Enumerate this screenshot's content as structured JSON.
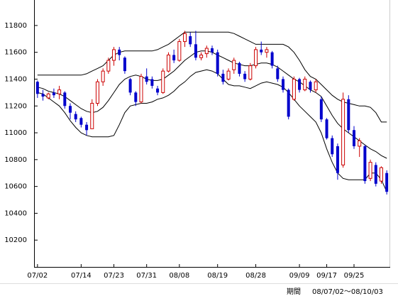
{
  "chart_data": {
    "type": "candlestick",
    "categories": [
      "07/02",
      null,
      null,
      null,
      null,
      null,
      null,
      null,
      "07/14",
      null,
      null,
      null,
      null,
      null,
      "07/23",
      null,
      null,
      null,
      null,
      null,
      "07/31",
      null,
      null,
      null,
      null,
      null,
      "08/08",
      null,
      null,
      null,
      null,
      null,
      null,
      "08/19",
      null,
      null,
      null,
      null,
      null,
      null,
      "08/28",
      null,
      null,
      null,
      null,
      null,
      null,
      null,
      "09/09",
      null,
      null,
      null,
      null,
      "09/17",
      null,
      null,
      null,
      null,
      "09/25",
      null,
      null,
      null,
      null,
      null,
      null
    ],
    "open": [
      11380,
      11290,
      11260,
      11300,
      11290,
      11300,
      11200,
      11140,
      11110,
      11060,
      11030,
      11220,
      11380,
      11460,
      11540,
      11620,
      11560,
      11400,
      11300,
      11230,
      11420,
      11400,
      11330,
      11300,
      11460,
      11580,
      11540,
      11680,
      11720,
      11660,
      11560,
      11590,
      11630,
      11600,
      11440,
      11400,
      11470,
      11520,
      11440,
      11400,
      11500,
      11620,
      11600,
      11600,
      11480,
      11400,
      11320,
      11250,
      11400,
      11320,
      11380,
      11320,
      11250,
      11100,
      10960,
      10900,
      10760,
      11250,
      11020,
      10900,
      10900,
      10660,
      10760,
      10640,
      10700
    ],
    "high": [
      11390,
      11320,
      11300,
      11330,
      11350,
      11310,
      11220,
      11160,
      11120,
      11080,
      11250,
      11400,
      11480,
      11560,
      11640,
      11640,
      11570,
      11410,
      11310,
      11440,
      11480,
      11420,
      11350,
      11480,
      11600,
      11620,
      11700,
      11760,
      11750,
      11760,
      11600,
      11650,
      11650,
      11620,
      11470,
      11480,
      11560,
      11530,
      11460,
      11520,
      11640,
      11680,
      11640,
      11610,
      11500,
      11420,
      11330,
      11420,
      11410,
      11420,
      11390,
      11400,
      11270,
      11110,
      10980,
      10920,
      11300,
      11280,
      11050,
      10960,
      10910,
      10800,
      10780,
      10750,
      10720
    ],
    "low": [
      11260,
      11240,
      11250,
      11260,
      11250,
      11180,
      11100,
      11080,
      11040,
      10980,
      11030,
      11200,
      11350,
      11440,
      11500,
      11540,
      11440,
      11280,
      11200,
      11220,
      11360,
      11330,
      11280,
      11290,
      11450,
      11520,
      11530,
      11640,
      11640,
      11540,
      11540,
      11560,
      11580,
      11420,
      11360,
      11390,
      11440,
      11420,
      11380,
      11390,
      11480,
      11580,
      11560,
      11480,
      11380,
      11300,
      11100,
      11240,
      11300,
      11310,
      11300,
      11300,
      11080,
      10950,
      10820,
      10650,
      10740,
      11000,
      10880,
      10820,
      10620,
      10640,
      10600,
      10620,
      10540
    ],
    "close": [
      11290,
      11270,
      11290,
      11280,
      11320,
      11200,
      11150,
      11100,
      11060,
      11020,
      11220,
      11380,
      11460,
      11540,
      11620,
      11580,
      11460,
      11300,
      11230,
      11420,
      11380,
      11350,
      11300,
      11460,
      11580,
      11540,
      11680,
      11740,
      11660,
      11560,
      11580,
      11630,
      11600,
      11440,
      11380,
      11460,
      11540,
      11440,
      11400,
      11500,
      11620,
      11600,
      11620,
      11500,
      11400,
      11320,
      11120,
      11400,
      11320,
      11400,
      11320,
      11380,
      11100,
      10960,
      10840,
      10700,
      11250,
      11020,
      10900,
      10940,
      10640,
      10780,
      10620,
      10740,
      10560
    ],
    "bands": {
      "upper": [
        11430,
        11430,
        11430,
        11430,
        11430,
        11430,
        11430,
        11430,
        11430,
        11440,
        11460,
        11480,
        11500,
        11540,
        11580,
        11600,
        11610,
        11610,
        11610,
        11610,
        11610,
        11610,
        11620,
        11640,
        11660,
        11690,
        11720,
        11750,
        11750,
        11750,
        11750,
        11750,
        11750,
        11750,
        11750,
        11750,
        11740,
        11720,
        11700,
        11680,
        11660,
        11660,
        11660,
        11660,
        11660,
        11660,
        11640,
        11600,
        11540,
        11470,
        11420,
        11400,
        11360,
        11320,
        11280,
        11250,
        11230,
        11220,
        11210,
        11200,
        11200,
        11190,
        11150,
        11080,
        11080
      ],
      "middle": [
        11340,
        11330,
        11310,
        11300,
        11290,
        11270,
        11240,
        11210,
        11180,
        11160,
        11150,
        11160,
        11190,
        11240,
        11300,
        11360,
        11400,
        11420,
        11430,
        11420,
        11400,
        11390,
        11390,
        11400,
        11430,
        11460,
        11500,
        11540,
        11570,
        11600,
        11610,
        11610,
        11600,
        11580,
        11560,
        11540,
        11520,
        11510,
        11500,
        11500,
        11510,
        11520,
        11520,
        11510,
        11490,
        11460,
        11430,
        11400,
        11380,
        11350,
        11320,
        11300,
        11270,
        11200,
        11130,
        11070,
        11030,
        11000,
        10970,
        10940,
        10910,
        10880,
        10860,
        10830,
        10810
      ],
      "lower": [
        11300,
        11290,
        11260,
        11230,
        11200,
        11150,
        11090,
        11040,
        11000,
        10980,
        10970,
        10970,
        10970,
        10970,
        10980,
        11060,
        11150,
        11200,
        11210,
        11220,
        11220,
        11230,
        11250,
        11260,
        11280,
        11310,
        11350,
        11380,
        11420,
        11450,
        11460,
        11470,
        11460,
        11440,
        11400,
        11360,
        11350,
        11350,
        11340,
        11330,
        11350,
        11370,
        11380,
        11370,
        11360,
        11340,
        11300,
        11250,
        11200,
        11160,
        11120,
        11080,
        11000,
        10880,
        10780,
        10700,
        10660,
        10650,
        10650,
        10650,
        10650,
        10700,
        10700,
        10650,
        10560
      ]
    },
    "up_color": "#cc0000",
    "down_color": "#0000cc",
    "band_color": "#000000",
    "ylim": [
      10000,
      11990
    ],
    "yticks": [
      10200,
      10400,
      10600,
      10800,
      11000,
      11200,
      11400,
      11600,
      11800
    ],
    "period_label": "期間",
    "period": "08/07/02～08/10/03"
  }
}
